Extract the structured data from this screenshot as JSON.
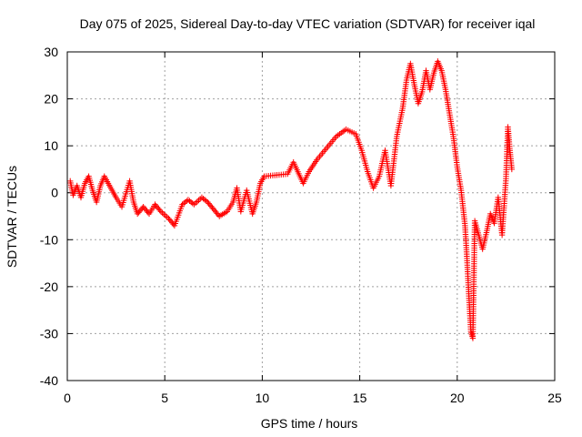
{
  "chart_data": {
    "type": "scatter",
    "title": "Day 075 of 2025, Sidereal Day-to-day VTEC variation (SDTVAR) for receiver iqal",
    "xlabel": "GPS time / hours",
    "ylabel": "SDTVAR / TECUs",
    "xlim": [
      0,
      25
    ],
    "ylim": [
      -40,
      30
    ],
    "grid": true,
    "marker": "+",
    "color": "#ff0000",
    "x_ticks": [
      0,
      5,
      10,
      15,
      20,
      25
    ],
    "x_tick_labels": [
      "0",
      "5",
      "10",
      "15",
      "20",
      "25"
    ],
    "y_ticks": [
      30,
      20,
      10,
      0,
      -10,
      -20,
      -30,
      -40
    ],
    "y_tick_labels": [
      "30",
      "20",
      "10",
      "0",
      "-10",
      "-20",
      "-30",
      "-40"
    ],
    "series": [
      {
        "name": "SDTVAR",
        "trace": [
          [
            0.15,
            2.5
          ],
          [
            0.3,
            -0.5
          ],
          [
            0.5,
            1.5
          ],
          [
            0.7,
            -1.0
          ],
          [
            0.9,
            2.0
          ],
          [
            1.1,
            3.5
          ],
          [
            1.3,
            0.5
          ],
          [
            1.5,
            -2.0
          ],
          [
            1.7,
            1.5
          ],
          [
            1.9,
            3.5
          ],
          [
            2.1,
            2.0
          ],
          [
            2.3,
            0.5
          ],
          [
            2.5,
            -1.0
          ],
          [
            2.8,
            -3.0
          ],
          [
            3.2,
            2.5
          ],
          [
            3.4,
            -2.0
          ],
          [
            3.6,
            -4.5
          ],
          [
            3.9,
            -3.0
          ],
          [
            4.2,
            -4.5
          ],
          [
            4.5,
            -2.5
          ],
          [
            4.8,
            -4.0
          ],
          [
            5.2,
            -5.5
          ],
          [
            5.5,
            -7.0
          ],
          [
            5.9,
            -2.5
          ],
          [
            6.2,
            -1.5
          ],
          [
            6.5,
            -2.5
          ],
          [
            6.9,
            -1.0
          ],
          [
            7.2,
            -2.0
          ],
          [
            7.5,
            -3.5
          ],
          [
            7.8,
            -5.0
          ],
          [
            8.2,
            -4.0
          ],
          [
            8.5,
            -2.0
          ],
          [
            8.7,
            1.0
          ],
          [
            8.9,
            -4.0
          ],
          [
            9.2,
            0.5
          ],
          [
            9.5,
            -4.5
          ],
          [
            9.7,
            -2.0
          ],
          [
            9.9,
            2.0
          ],
          [
            10.1,
            3.5
          ],
          [
            11.3,
            4.0
          ],
          [
            11.6,
            6.5
          ],
          [
            12.1,
            2.0
          ],
          [
            12.4,
            4.5
          ],
          [
            12.8,
            7.0
          ],
          [
            13.3,
            9.5
          ],
          [
            13.8,
            12.0
          ],
          [
            14.3,
            13.5
          ],
          [
            14.8,
            12.5
          ],
          [
            15.1,
            9.0
          ],
          [
            15.4,
            4.5
          ],
          [
            15.7,
            1.0
          ],
          [
            16.0,
            3.5
          ],
          [
            16.3,
            9.0
          ],
          [
            16.6,
            1.5
          ],
          [
            16.9,
            12.0
          ],
          [
            17.2,
            18.0
          ],
          [
            17.4,
            24.0
          ],
          [
            17.6,
            27.5
          ],
          [
            17.8,
            23.0
          ],
          [
            18.0,
            19.0
          ],
          [
            18.2,
            21.5
          ],
          [
            18.4,
            26.0
          ],
          [
            18.6,
            22.0
          ],
          [
            18.8,
            25.5
          ],
          [
            19.0,
            28.0
          ],
          [
            19.2,
            26.0
          ],
          [
            19.4,
            22.0
          ],
          [
            19.6,
            17.0
          ],
          [
            19.8,
            12.0
          ],
          [
            20.0,
            5.5
          ],
          [
            20.2,
            0.5
          ],
          [
            20.4,
            -7.0
          ],
          [
            20.5,
            -14.0
          ],
          [
            20.6,
            -22.0
          ],
          [
            20.7,
            -29.5
          ],
          [
            20.8,
            -31.0
          ],
          [
            20.9,
            -6.0
          ],
          [
            21.1,
            -9.0
          ],
          [
            21.3,
            -12.0
          ],
          [
            21.5,
            -8.5
          ],
          [
            21.7,
            -4.5
          ],
          [
            21.9,
            -6.5
          ],
          [
            22.1,
            -1.0
          ],
          [
            22.3,
            -9.0
          ],
          [
            22.5,
            3.0
          ],
          [
            22.6,
            14.0
          ],
          [
            22.7,
            9.0
          ],
          [
            22.8,
            5.0
          ]
        ]
      }
    ]
  }
}
